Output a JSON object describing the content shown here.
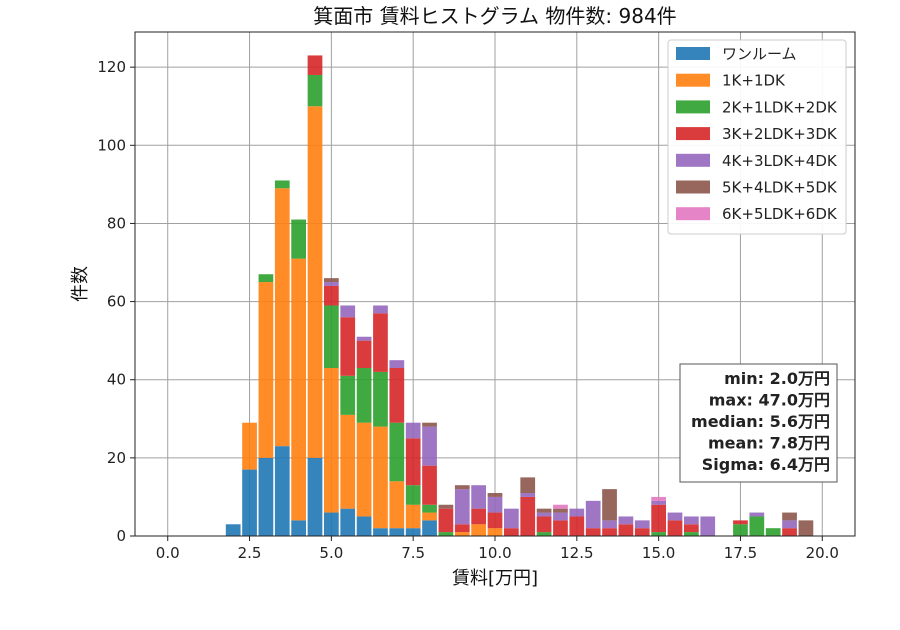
{
  "chart_data": {
    "type": "bar",
    "stacked": true,
    "title": "箕面市 賃料ヒストグラム 物件数: 984件",
    "xlabel": "賃料[万円]",
    "ylabel": "件数",
    "xlim": [
      -1,
      21
    ],
    "ylim": [
      0,
      129
    ],
    "xticks": [
      "0.0",
      "2.5",
      "5.0",
      "7.5",
      "10.0",
      "12.5",
      "15.0",
      "17.5",
      "20.0"
    ],
    "yticks": [
      "0",
      "20",
      "40",
      "60",
      "80",
      "100",
      "120"
    ],
    "grid": true,
    "legend_position": "top-right",
    "bin_width": 0.5,
    "x": [
      2.0,
      2.5,
      3.0,
      3.5,
      4.0,
      4.5,
      5.0,
      5.5,
      6.0,
      6.5,
      7.0,
      7.5,
      8.0,
      8.5,
      9.0,
      9.5,
      10.0,
      10.5,
      11.0,
      11.5,
      12.0,
      12.5,
      13.0,
      13.5,
      14.0,
      14.5,
      15.0,
      15.5,
      16.0,
      16.5,
      17.0,
      17.5,
      18.0,
      18.5,
      19.0,
      19.5
    ],
    "series": [
      {
        "name": "ワンルーム",
        "color": "#1f77b4",
        "values": [
          3,
          17,
          20,
          23,
          4,
          20,
          6,
          7,
          5,
          2,
          2,
          2,
          4,
          0,
          0,
          0,
          0,
          0,
          0,
          0,
          0,
          0,
          0,
          0,
          0,
          0,
          0,
          0,
          0,
          0,
          0,
          0,
          0,
          0,
          0,
          0
        ]
      },
      {
        "name": "1K+1DK",
        "color": "#ff7f0e",
        "values": [
          0,
          12,
          45,
          66,
          67,
          90,
          37,
          24,
          24,
          26,
          12,
          6,
          2,
          0,
          1,
          3,
          2,
          0,
          0,
          0,
          0,
          0,
          0,
          0,
          0,
          0,
          0,
          0,
          0,
          0,
          0,
          0,
          0,
          0,
          0,
          0
        ]
      },
      {
        "name": "2K+1LDK+2DK",
        "color": "#2ca02c",
        "values": [
          0,
          0,
          2,
          2,
          10,
          8,
          16,
          10,
          14,
          14,
          15,
          5,
          2,
          1,
          0,
          0,
          0,
          0,
          0,
          1,
          0,
          0,
          0,
          0,
          0,
          0,
          1,
          0,
          1,
          0,
          0,
          3,
          5,
          2,
          0,
          0
        ]
      },
      {
        "name": "3K+2LDK+3DK",
        "color": "#d62728",
        "values": [
          0,
          0,
          0,
          0,
          0,
          5,
          5,
          15,
          7,
          15,
          14,
          12,
          10,
          6,
          2,
          4,
          4,
          2,
          10,
          4,
          4,
          5,
          2,
          2,
          3,
          2,
          7,
          4,
          2,
          0,
          0,
          1,
          0,
          0,
          2,
          0
        ]
      },
      {
        "name": "4K+3LDK+4DK",
        "color": "#9467bd",
        "values": [
          0,
          0,
          0,
          0,
          0,
          0,
          1,
          3,
          1,
          2,
          2,
          4,
          10,
          0,
          9,
          6,
          4,
          5,
          1,
          1,
          2,
          2,
          7,
          2,
          2,
          2,
          1,
          2,
          2,
          5,
          0,
          0,
          1,
          0,
          2,
          0
        ]
      },
      {
        "name": "5K+4LDK+5DK",
        "color": "#8c564b",
        "values": [
          0,
          0,
          0,
          0,
          0,
          0,
          1,
          0,
          0,
          0,
          0,
          0,
          1,
          1,
          1,
          0,
          1,
          0,
          4,
          1,
          1,
          0,
          0,
          8,
          0,
          0,
          0,
          0,
          0,
          0,
          0,
          0,
          0,
          0,
          2,
          4
        ]
      },
      {
        "name": "6K+5LDK+6DK",
        "color": "#e377c2",
        "values": [
          0,
          0,
          0,
          0,
          0,
          0,
          0,
          0,
          0,
          0,
          0,
          0,
          0,
          0,
          0,
          0,
          0,
          0,
          0,
          0,
          1,
          0,
          0,
          0,
          0,
          0,
          1,
          0,
          0,
          0,
          0,
          0,
          0,
          0,
          0,
          0
        ]
      }
    ],
    "stats": [
      "min: 2.0万円",
      "max: 47.0万円",
      "median: 5.6万円",
      "mean: 7.8万円",
      "Sigma: 6.4万円"
    ]
  }
}
